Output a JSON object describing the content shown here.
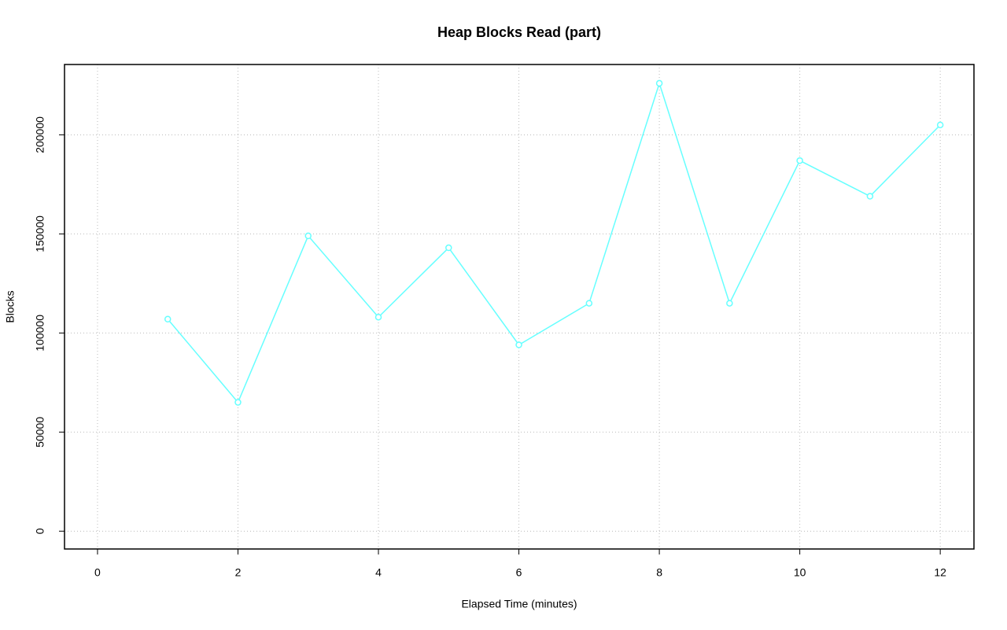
{
  "chart_data": {
    "type": "line",
    "title": "Heap Blocks Read (part)",
    "x_label": "Elapsed Time (minutes)",
    "y_label": "Blocks",
    "x": [
      1,
      2,
      3,
      4,
      5,
      6,
      7,
      8,
      9,
      10,
      11,
      12
    ],
    "values": [
      107000,
      65000,
      149000,
      108000,
      143000,
      94000,
      115000,
      226000,
      115000,
      187000,
      169000,
      205000
    ],
    "color": "#66ffff",
    "markers": true,
    "xlim": [
      -0.47,
      12.48
    ],
    "xticks": [
      0,
      2,
      4,
      6,
      8,
      10,
      12
    ],
    "ylim": [
      -9000,
      235500
    ],
    "yticks": [
      0,
      50000,
      100000,
      150000,
      200000
    ],
    "grid": true
  }
}
